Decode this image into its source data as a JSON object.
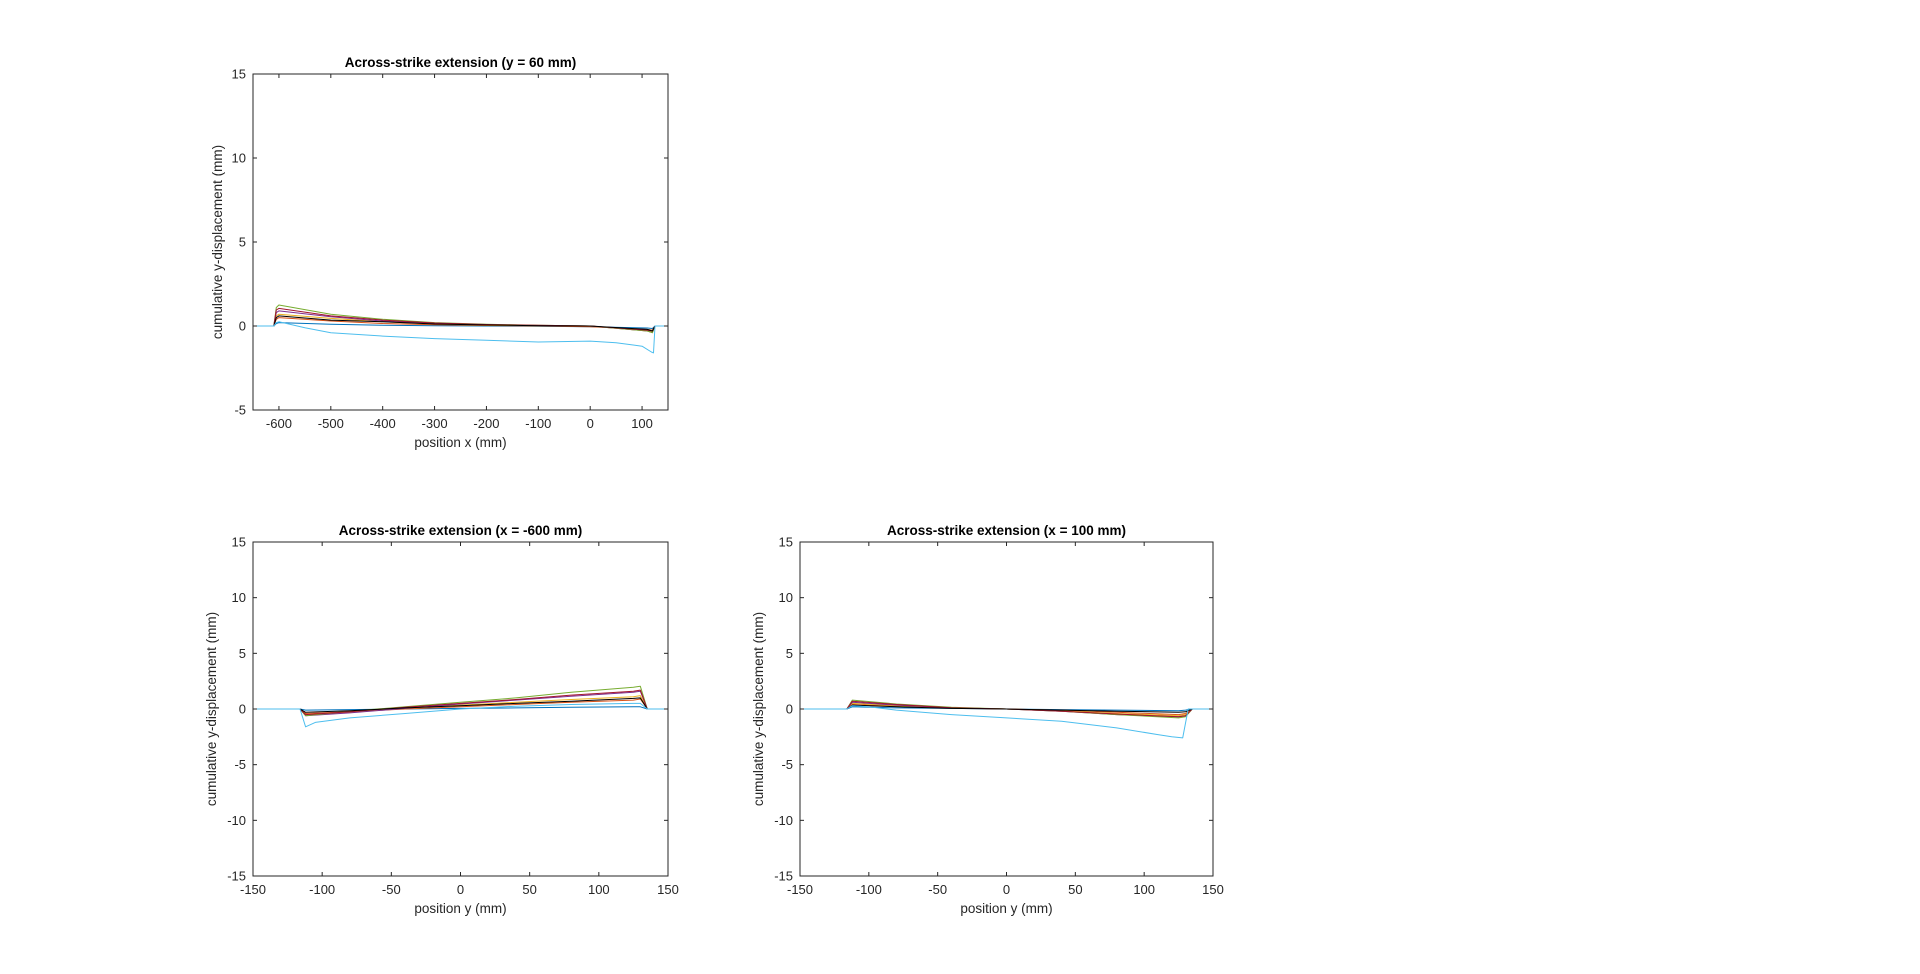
{
  "figure": {
    "background": "#ffffff",
    "axis_color": "#262626"
  },
  "chart_data": [
    {
      "type": "line",
      "title": "Across-strike extension (y = 60 mm)",
      "xlabel": "position x (mm)",
      "ylabel": "cumulative y-displacement (mm)",
      "xlim": [
        -650,
        150
      ],
      "ylim": [
        -5,
        15
      ],
      "xticks": [
        -600,
        -500,
        -400,
        -300,
        -200,
        -100,
        0,
        100
      ],
      "yticks": [
        -5,
        0,
        5,
        10,
        15
      ],
      "grid": false,
      "legend": "none",
      "series": [
        {
          "color": "#0072BD",
          "x": [
            -650,
            -610,
            -605,
            -600,
            -500,
            -400,
            -300,
            -200,
            -100,
            0,
            110,
            120,
            125,
            150
          ],
          "y": [
            0,
            0,
            0.15,
            0.2,
            0.1,
            0.05,
            0.02,
            0,
            -0.02,
            -0.05,
            -0.12,
            -0.15,
            0,
            0
          ]
        },
        {
          "color": "#D95319",
          "x": [
            -650,
            -610,
            -605,
            -600,
            -500,
            -400,
            -300,
            -200,
            -100,
            0,
            110,
            120,
            125,
            150
          ],
          "y": [
            0,
            0,
            0.4,
            0.5,
            0.3,
            0.15,
            0.08,
            0.03,
            0,
            -0.05,
            -0.2,
            -0.25,
            0,
            0
          ]
        },
        {
          "color": "#EDB120",
          "x": [
            -650,
            -610,
            -605,
            -600,
            -500,
            -400,
            -300,
            -200,
            -100,
            0,
            110,
            120,
            125,
            150
          ],
          "y": [
            0,
            0,
            0.6,
            0.7,
            0.45,
            0.25,
            0.12,
            0.05,
            0.02,
            0,
            -0.3,
            -0.35,
            0,
            0
          ]
        },
        {
          "color": "#7E2F8E",
          "x": [
            -650,
            -610,
            -605,
            -600,
            -500,
            -400,
            -300,
            -200,
            -100,
            0,
            110,
            120,
            125,
            150
          ],
          "y": [
            0,
            0,
            0.8,
            0.9,
            0.55,
            0.3,
            0.15,
            0.08,
            0.03,
            0,
            -0.3,
            -0.4,
            0,
            0
          ]
        },
        {
          "color": "#77AC30",
          "x": [
            -650,
            -610,
            -605,
            -600,
            -500,
            -400,
            -300,
            -200,
            -100,
            0,
            110,
            120,
            125,
            150
          ],
          "y": [
            0,
            0,
            1.1,
            1.25,
            0.7,
            0.4,
            0.2,
            0.1,
            0.05,
            0,
            -0.3,
            -0.4,
            0,
            0
          ]
        },
        {
          "color": "#A2142F",
          "x": [
            -650,
            -610,
            -605,
            -600,
            -500,
            -400,
            -300,
            -200,
            -100,
            0,
            110,
            120,
            125,
            150
          ],
          "y": [
            0,
            0,
            0.95,
            1.05,
            0.6,
            0.35,
            0.18,
            0.09,
            0.04,
            0,
            -0.25,
            -0.3,
            0,
            0
          ]
        },
        {
          "color": "#000000",
          "x": [
            -650,
            -610,
            -605,
            -600,
            -500,
            -400,
            -300,
            -200,
            -100,
            0,
            110,
            120,
            125,
            150
          ],
          "y": [
            0,
            0,
            0.5,
            0.6,
            0.35,
            0.25,
            0.12,
            0.06,
            0.02,
            0,
            -0.2,
            -0.3,
            0,
            0
          ]
        },
        {
          "color": "#4DBEEE",
          "x": [
            -650,
            -610,
            -605,
            -600,
            -550,
            -500,
            -400,
            -300,
            -200,
            -100,
            0,
            50,
            100,
            118,
            122,
            125,
            150
          ],
          "y": [
            0,
            0,
            0.2,
            0.25,
            -0.1,
            -0.4,
            -0.6,
            -0.75,
            -0.85,
            -0.95,
            -0.9,
            -1.0,
            -1.2,
            -1.55,
            -1.6,
            0,
            0
          ]
        }
      ]
    },
    {
      "type": "line",
      "title": "Across-strike extension (x = -600 mm)",
      "xlabel": "position y (mm)",
      "ylabel": "cumulative y-displacement (mm)",
      "xlim": [
        -150,
        150
      ],
      "ylim": [
        -15,
        15
      ],
      "xticks": [
        -150,
        -100,
        -50,
        0,
        50,
        100,
        150
      ],
      "yticks": [
        -15,
        -10,
        -5,
        0,
        5,
        10,
        15
      ],
      "grid": false,
      "legend": "none",
      "series": [
        {
          "color": "#0072BD",
          "x": [
            -150,
            -116,
            -112,
            -80,
            -40,
            0,
            40,
            80,
            125,
            130,
            135,
            150
          ],
          "y": [
            0,
            0,
            -0.1,
            -0.05,
            0,
            0.05,
            0.1,
            0.15,
            0.2,
            0.2,
            0,
            0
          ]
        },
        {
          "color": "#D95319",
          "x": [
            -150,
            -116,
            -112,
            -80,
            -40,
            0,
            40,
            80,
            125,
            130,
            135,
            150
          ],
          "y": [
            0,
            0,
            -0.4,
            -0.25,
            0,
            0.2,
            0.4,
            0.6,
            0.8,
            0.9,
            0,
            0
          ]
        },
        {
          "color": "#EDB120",
          "x": [
            -150,
            -116,
            -112,
            -80,
            -40,
            0,
            40,
            80,
            125,
            130,
            135,
            150
          ],
          "y": [
            0,
            0,
            -0.5,
            -0.3,
            0.05,
            0.35,
            0.6,
            0.85,
            1.1,
            1.2,
            0,
            0
          ]
        },
        {
          "color": "#7E2F8E",
          "x": [
            -150,
            -116,
            -112,
            -80,
            -40,
            0,
            40,
            80,
            125,
            130,
            135,
            150
          ],
          "y": [
            0,
            0,
            -0.6,
            -0.35,
            0.05,
            0.45,
            0.8,
            1.15,
            1.5,
            1.6,
            0,
            0
          ]
        },
        {
          "color": "#77AC30",
          "x": [
            -150,
            -116,
            -112,
            -80,
            -40,
            0,
            40,
            80,
            125,
            130,
            135,
            150
          ],
          "y": [
            0,
            0,
            -0.6,
            -0.2,
            0.2,
            0.6,
            1.0,
            1.5,
            1.95,
            2.05,
            0,
            0
          ]
        },
        {
          "color": "#A2142F",
          "x": [
            -150,
            -116,
            -112,
            -80,
            -40,
            0,
            40,
            80,
            125,
            130,
            135,
            150
          ],
          "y": [
            0,
            0,
            -0.5,
            -0.25,
            0.15,
            0.5,
            0.85,
            1.25,
            1.6,
            1.7,
            0,
            0
          ]
        },
        {
          "color": "#000000",
          "x": [
            -150,
            -116,
            -112,
            -80,
            -40,
            0,
            40,
            80,
            125,
            130,
            135,
            150
          ],
          "y": [
            0,
            0,
            -0.3,
            -0.15,
            0.1,
            0.3,
            0.5,
            0.7,
            0.95,
            1.0,
            0,
            0
          ]
        },
        {
          "color": "#4DBEEE",
          "x": [
            -150,
            -116,
            -112,
            -105,
            -80,
            -40,
            0,
            40,
            80,
            125,
            130,
            135,
            150
          ],
          "y": [
            0,
            0,
            -1.6,
            -1.2,
            -0.8,
            -0.4,
            0,
            0.25,
            0.4,
            0.5,
            0.5,
            0,
            0
          ]
        }
      ]
    },
    {
      "type": "line",
      "title": "Across-strike extension (x = 100 mm)",
      "xlabel": "position y (mm)",
      "ylabel": "cumulative y-displacement (mm)",
      "xlim": [
        -150,
        150
      ],
      "ylim": [
        -15,
        15
      ],
      "xticks": [
        -150,
        -100,
        -50,
        0,
        50,
        100,
        150
      ],
      "yticks": [
        -15,
        -10,
        -5,
        0,
        5,
        10,
        15
      ],
      "grid": false,
      "legend": "none",
      "series": [
        {
          "color": "#0072BD",
          "x": [
            -150,
            -116,
            -112,
            -80,
            -40,
            0,
            40,
            80,
            125,
            130,
            135,
            150
          ],
          "y": [
            0,
            0,
            0.2,
            0.1,
            0.05,
            0,
            -0.05,
            -0.1,
            -0.15,
            -0.1,
            0,
            0
          ]
        },
        {
          "color": "#D95319",
          "x": [
            -150,
            -116,
            -112,
            -80,
            -40,
            0,
            40,
            80,
            125,
            130,
            135,
            150
          ],
          "y": [
            0,
            0,
            0.4,
            0.25,
            0.1,
            0,
            -0.1,
            -0.3,
            -0.5,
            -0.4,
            0,
            0
          ]
        },
        {
          "color": "#EDB120",
          "x": [
            -150,
            -116,
            -112,
            -80,
            -40,
            0,
            40,
            80,
            125,
            130,
            135,
            150
          ],
          "y": [
            0,
            0,
            0.5,
            0.3,
            0.1,
            0,
            -0.15,
            -0.4,
            -0.6,
            -0.5,
            0,
            0
          ]
        },
        {
          "color": "#7E2F8E",
          "x": [
            -150,
            -116,
            -112,
            -80,
            -40,
            0,
            40,
            80,
            125,
            130,
            135,
            150
          ],
          "y": [
            0,
            0,
            0.6,
            0.35,
            0.1,
            0,
            -0.2,
            -0.5,
            -0.7,
            -0.6,
            0,
            0
          ]
        },
        {
          "color": "#77AC30",
          "x": [
            -150,
            -116,
            -112,
            -80,
            -40,
            0,
            40,
            80,
            125,
            130,
            135,
            150
          ],
          "y": [
            0,
            0,
            0.8,
            0.45,
            0.15,
            0,
            -0.2,
            -0.5,
            -0.8,
            -0.7,
            0,
            0
          ]
        },
        {
          "color": "#A2142F",
          "x": [
            -150,
            -116,
            -112,
            -80,
            -40,
            0,
            40,
            80,
            125,
            130,
            135,
            150
          ],
          "y": [
            0,
            0,
            0.7,
            0.4,
            0.12,
            0,
            -0.2,
            -0.45,
            -0.7,
            -0.6,
            0,
            0
          ]
        },
        {
          "color": "#000000",
          "x": [
            -150,
            -116,
            -112,
            -80,
            -40,
            0,
            40,
            80,
            125,
            130,
            135,
            150
          ],
          "y": [
            0,
            0,
            0.35,
            0.2,
            0.05,
            0,
            -0.1,
            -0.2,
            -0.3,
            -0.25,
            0,
            0
          ]
        },
        {
          "color": "#4DBEEE",
          "x": [
            -150,
            -116,
            -112,
            -100,
            -80,
            -40,
            0,
            40,
            80,
            110,
            120,
            128,
            132,
            150
          ],
          "y": [
            0,
            0,
            0.3,
            0.2,
            -0.1,
            -0.5,
            -0.8,
            -1.1,
            -1.7,
            -2.3,
            -2.5,
            -2.6,
            0,
            0
          ]
        }
      ]
    }
  ]
}
